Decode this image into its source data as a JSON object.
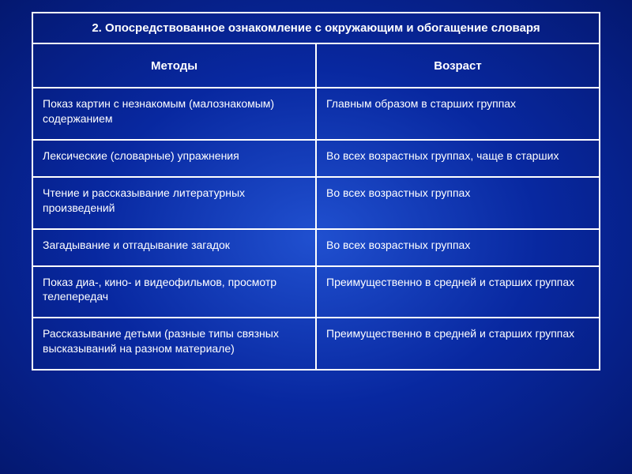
{
  "title": "2. Опосредствованное ознакомление с окружающим и обогащение словаря",
  "headers": {
    "method": "Методы",
    "age": "Возраст"
  },
  "rows": [
    {
      "method": "Показ картин с незнакомым (малознакомым) содержанием",
      "age": "Главным образом в старших группах"
    },
    {
      "method": "Лексические (словарные) упражнения",
      "age": "Во всех возрастных группах, чаще в старших"
    },
    {
      "method": "Чтение и рассказывание литературных произведений",
      "age": "Во всех возрастных группах"
    },
    {
      "method": "Загадывание и отгадывание загадок",
      "age": "Во всех возрастных группах"
    },
    {
      "method": "Показ диа-, кино- и видеофильмов, просмотр телепередач",
      "age": "Преимущественно в средней и старших группах"
    },
    {
      "method": "Рассказывание детьми (разные типы связных высказываний на разном материале)",
      "age": "Преимущественно в средней и старших группах"
    }
  ],
  "styling": {
    "background_gradient": [
      "#2050d0",
      "#0828a0",
      "#041870"
    ],
    "border_color": "#ffffff",
    "text_color": "#ffffff",
    "font_family": "Arial",
    "title_fontsize": 15,
    "header_fontsize": 15,
    "body_fontsize": 14
  }
}
